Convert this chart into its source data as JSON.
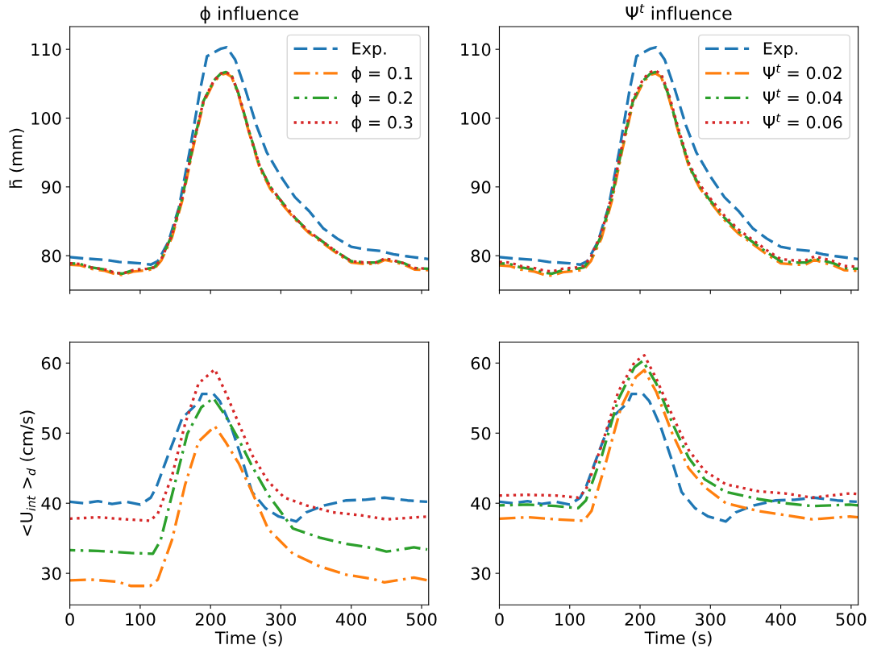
{
  "chart_data": [
    {
      "type": "line",
      "title": "ϕ influence",
      "ylabel": "h̄ (mm)",
      "xlim": [
        0,
        510
      ],
      "xticks": [
        0,
        100,
        200,
        300,
        400,
        500
      ],
      "ylim": [
        75,
        113.3
      ],
      "yticks": [
        80,
        90,
        100,
        110
      ],
      "tick_labels": "y",
      "legend": "top right",
      "grid": false,
      "series": [
        {
          "name": "Exp.",
          "color": "#1f77b4",
          "line_style": "dashed",
          "x": [
            0,
            20,
            50,
            70,
            100,
            115,
            125,
            140,
            155,
            170,
            185,
            195,
            206,
            215,
            223,
            235,
            250,
            265,
            280,
            300,
            320,
            340,
            360,
            380,
            400,
            420,
            440,
            460,
            480,
            510
          ],
          "values": [
            79.8,
            79.6,
            79.4,
            79.1,
            78.9,
            78.7,
            79.2,
            82,
            87,
            95,
            104,
            109,
            109.6,
            110.1,
            110.3,
            108.5,
            104,
            99,
            95,
            91.5,
            88.5,
            86.5,
            84,
            82.5,
            81.3,
            80.9,
            80.7,
            80.2,
            79.9,
            79.5
          ]
        },
        {
          "name": "ϕ = 0.1",
          "color": "#ff7f0e",
          "line_style": "dashdot",
          "x": [
            0,
            15,
            30,
            50,
            65,
            75,
            90,
            110,
            120,
            130,
            145,
            160,
            175,
            190,
            205,
            215,
            222,
            230,
            240,
            255,
            270,
            285,
            300,
            320,
            340,
            360,
            380,
            400,
            420,
            435,
            448,
            460,
            475,
            490,
            510
          ],
          "values": [
            78.7,
            78.6,
            78.1,
            77.8,
            77.3,
            77.2,
            77.7,
            77.9,
            78.1,
            79.3,
            82.6,
            88.1,
            95.6,
            102.2,
            105.3,
            106.3,
            106.5,
            106.0,
            103.3,
            97.8,
            92.7,
            89.7,
            87.7,
            85.3,
            83.3,
            81.8,
            80.3,
            79.0,
            78.8,
            78.8,
            79.4,
            79.1,
            78.7,
            78.0,
            77.9
          ]
        },
        {
          "name": "ϕ = 0.2",
          "color": "#2ca02c",
          "line_style": "dashdot",
          "x": [
            0,
            15,
            30,
            50,
            65,
            75,
            90,
            110,
            120,
            130,
            145,
            160,
            175,
            190,
            205,
            215,
            222,
            230,
            240,
            255,
            270,
            285,
            300,
            320,
            340,
            360,
            380,
            400,
            420,
            435,
            448,
            460,
            475,
            490,
            510
          ],
          "values": [
            78.9,
            78.8,
            78.3,
            78.0,
            77.5,
            77.4,
            77.9,
            78.1,
            78.3,
            79.5,
            83,
            88.5,
            96,
            102.5,
            105.5,
            106.5,
            106.7,
            106.2,
            103.5,
            98,
            93,
            90,
            88,
            85.5,
            83.5,
            82,
            80.5,
            79.2,
            79.0,
            79.0,
            79.6,
            79.3,
            78.9,
            78.2,
            78.1
          ]
        },
        {
          "name": "ϕ = 0.3",
          "color": "#d62728",
          "line_style": "dotted",
          "x": [
            0,
            15,
            30,
            50,
            65,
            75,
            90,
            110,
            120,
            130,
            145,
            160,
            175,
            190,
            205,
            215,
            222,
            230,
            240,
            255,
            270,
            285,
            300,
            320,
            340,
            360,
            380,
            400,
            420,
            435,
            448,
            460,
            475,
            490,
            510
          ],
          "values": [
            78.9,
            78.8,
            78.3,
            78.0,
            77.5,
            77.4,
            77.9,
            78.1,
            78.3,
            79.5,
            83,
            88.5,
            96,
            102.5,
            105.5,
            106.5,
            106.7,
            106.2,
            103.5,
            98,
            93,
            90,
            88,
            85.5,
            83.5,
            82,
            80.5,
            79.2,
            79.0,
            79.0,
            79.6,
            79.3,
            78.9,
            78.2,
            78.1
          ]
        }
      ]
    },
    {
      "type": "line",
      "title": "Ψ$^{t}$ influence",
      "xlim": [
        0,
        510
      ],
      "xticks": [
        0,
        100,
        200,
        300,
        400,
        500
      ],
      "ylim": [
        75,
        113.3
      ],
      "yticks": [
        80,
        90,
        100,
        110
      ],
      "tick_labels": "y",
      "legend": "top right",
      "grid": false,
      "series": [
        {
          "name": "Exp.",
          "color": "#1f77b4",
          "line_style": "dashed",
          "x": [
            0,
            20,
            50,
            70,
            100,
            115,
            125,
            140,
            155,
            170,
            185,
            195,
            206,
            215,
            223,
            235,
            250,
            265,
            280,
            300,
            320,
            340,
            360,
            380,
            400,
            420,
            440,
            460,
            480,
            510
          ],
          "values": [
            79.8,
            79.6,
            79.4,
            79.1,
            78.9,
            78.7,
            79.2,
            82,
            87,
            95,
            104,
            109,
            109.6,
            110.1,
            110.3,
            108.5,
            104,
            99,
            95,
            91.5,
            88.5,
            86.5,
            84,
            82.5,
            81.3,
            80.9,
            80.7,
            80.2,
            79.9,
            79.5
          ]
        },
        {
          "name": "Ψ$^{t}$ = 0.02",
          "color": "#ff7f0e",
          "line_style": "dashdot",
          "x": [
            0,
            15,
            30,
            50,
            65,
            75,
            90,
            110,
            120,
            130,
            145,
            160,
            175,
            190,
            205,
            215,
            222,
            230,
            240,
            255,
            270,
            285,
            300,
            320,
            340,
            360,
            380,
            400,
            420,
            435,
            448,
            460,
            475,
            490,
            510
          ],
          "values": [
            78.6,
            78.5,
            78.0,
            77.7,
            77.2,
            77.1,
            77.6,
            77.8,
            78.0,
            79.2,
            82.5,
            88,
            95.5,
            102.2,
            105.3,
            106.3,
            106.5,
            106.0,
            103.3,
            97.8,
            92.8,
            89.8,
            87.8,
            85.2,
            83.2,
            81.7,
            80.2,
            78.9,
            78.7,
            78.7,
            79.4,
            79.0,
            78.6,
            77.9,
            77.8
          ]
        },
        {
          "name": "Ψ$^{t}$ = 0.04",
          "color": "#2ca02c",
          "line_style": "dashdot",
          "x": [
            0,
            15,
            30,
            50,
            65,
            75,
            90,
            110,
            120,
            130,
            145,
            160,
            175,
            190,
            205,
            215,
            222,
            230,
            240,
            255,
            270,
            285,
            300,
            320,
            340,
            360,
            380,
            400,
            420,
            435,
            448,
            460,
            475,
            490,
            510
          ],
          "values": [
            78.9,
            78.8,
            78.3,
            78.0,
            77.5,
            77.4,
            77.9,
            78.1,
            78.3,
            79.5,
            83,
            88.5,
            96,
            102.5,
            105.5,
            106.5,
            106.7,
            106.2,
            103.5,
            98,
            93,
            90,
            88,
            85.5,
            83.5,
            82,
            80.5,
            79.2,
            79.0,
            79.0,
            79.6,
            79.3,
            78.9,
            78.2,
            78.1
          ]
        },
        {
          "name": "Ψ$^{t}$ = 0.06",
          "color": "#d62728",
          "line_style": "dotted",
          "x": [
            0,
            15,
            30,
            50,
            65,
            75,
            90,
            110,
            120,
            130,
            145,
            160,
            175,
            190,
            205,
            215,
            222,
            230,
            240,
            255,
            270,
            285,
            300,
            320,
            340,
            360,
            380,
            400,
            420,
            435,
            448,
            460,
            475,
            490,
            510
          ],
          "values": [
            79.1,
            79.0,
            78.5,
            78.2,
            77.8,
            77.7,
            78.1,
            78.3,
            78.5,
            79.8,
            83.3,
            88.8,
            96.3,
            102.8,
            105.8,
            106.7,
            106.9,
            106.4,
            103.8,
            98.3,
            93.3,
            90.3,
            88.3,
            85.8,
            83.8,
            82.3,
            80.8,
            79.5,
            79.3,
            79.3,
            79.9,
            79.6,
            79.2,
            78.5,
            78.4
          ]
        }
      ]
    },
    {
      "type": "line",
      "ylabel": "<U$_{int}$ >$_{d}$ (cm/s)",
      "xlabel": "Time (s)",
      "xlim": [
        0,
        510
      ],
      "xticks": [
        0,
        100,
        200,
        300,
        400,
        500
      ],
      "ylim": [
        25.5,
        63
      ],
      "yticks": [
        30,
        40,
        50,
        60
      ],
      "grid": false,
      "series": [
        {
          "color": "#1f77b4",
          "line_style": "dashed",
          "x": [
            0,
            20,
            40,
            60,
            80,
            100,
            115,
            123,
            141,
            160,
            183,
            188,
            204,
            213,
            229,
            244,
            259,
            278,
            297,
            322,
            336,
            362,
            393,
            420,
            447,
            480,
            508
          ],
          "values": [
            40.2,
            40.0,
            40.3,
            39.9,
            40.2,
            39.8,
            40.8,
            42.3,
            47.2,
            52.2,
            54.4,
            55.6,
            55.6,
            54.6,
            51,
            46.5,
            41.6,
            39.3,
            38.1,
            37.4,
            38.7,
            39.7,
            40.4,
            40.5,
            40.8,
            40.4,
            40.2
          ]
        },
        {
          "color": "#ff7f0e",
          "line_style": "dashdot",
          "x": [
            0,
            30,
            68,
            87,
            114,
            125,
            145,
            164,
            183,
            206,
            221,
            240,
            259,
            282,
            317,
            355,
            393,
            431,
            447,
            489,
            508
          ],
          "values": [
            29.0,
            29.1,
            28.8,
            28.2,
            28.2,
            29.1,
            34.7,
            42.7,
            48.8,
            51.0,
            48.8,
            45.7,
            41.6,
            36.3,
            32.8,
            31.0,
            29.8,
            29.2,
            28.7,
            29.4,
            29.0
          ]
        },
        {
          "color": "#2ca02c",
          "line_style": "dashdot",
          "x": [
            0,
            40,
            87,
            118,
            129,
            148,
            167,
            187,
            204,
            221,
            240,
            259,
            282,
            317,
            355,
            393,
            431,
            450,
            489,
            508
          ],
          "values": [
            33.3,
            33.2,
            32.9,
            32.8,
            34.7,
            42.3,
            49.9,
            53.7,
            55.0,
            52.5,
            49.1,
            45.3,
            41.2,
            36.4,
            35.1,
            34.2,
            33.6,
            33.1,
            33.7,
            33.4
          ]
        },
        {
          "color": "#d62728",
          "line_style": "dotted",
          "x": [
            0,
            40,
            80,
            114,
            125,
            145,
            164,
            183,
            206,
            221,
            240,
            259,
            282,
            305,
            336,
            374,
            412,
            450,
            508
          ],
          "values": [
            37.8,
            38.0,
            37.7,
            37.5,
            38.5,
            43.8,
            51.4,
            57.1,
            59.1,
            55.9,
            51.4,
            46.9,
            43.1,
            40.8,
            39.7,
            38.7,
            38.3,
            37.7,
            38.1
          ]
        }
      ]
    },
    {
      "type": "line",
      "xlabel": "Time (s)",
      "xlim": [
        0,
        510
      ],
      "xticks": [
        0,
        100,
        200,
        300,
        400,
        500
      ],
      "ylim": [
        25.5,
        63
      ],
      "yticks": [
        30,
        40,
        50,
        60
      ],
      "grid": false,
      "series": [
        {
          "color": "#1f77b4",
          "line_style": "dashed",
          "x": [
            0,
            20,
            40,
            60,
            80,
            100,
            115,
            123,
            141,
            160,
            183,
            188,
            204,
            213,
            229,
            244,
            259,
            278,
            297,
            322,
            336,
            362,
            393,
            420,
            447,
            480,
            508
          ],
          "values": [
            40.2,
            40.0,
            40.3,
            39.9,
            40.2,
            39.8,
            40.8,
            42.3,
            47.2,
            52.2,
            54.4,
            55.6,
            55.6,
            54.6,
            51,
            46.5,
            41.6,
            39.3,
            38.1,
            37.4,
            38.7,
            39.7,
            40.4,
            40.5,
            40.8,
            40.4,
            40.2
          ]
        },
        {
          "color": "#ff7f0e",
          "line_style": "dashdot",
          "x": [
            0,
            40,
            80,
            120,
            131,
            150,
            173,
            194,
            206,
            223,
            246,
            269,
            292,
            322,
            368,
            406,
            445,
            498,
            510
          ],
          "values": [
            37.8,
            38.0,
            37.7,
            37.5,
            38.9,
            45.3,
            53.7,
            58.0,
            59.0,
            55.9,
            49.9,
            45.0,
            42.3,
            40.0,
            38.9,
            38.3,
            37.7,
            38.1,
            38.0
          ]
        },
        {
          "color": "#2ca02c",
          "line_style": "dashdot",
          "x": [
            0,
            40,
            80,
            112,
            123,
            146,
            169,
            192,
            204,
            223,
            246,
            269,
            292,
            322,
            368,
            406,
            445,
            498,
            510
          ],
          "values": [
            39.7,
            39.8,
            39.6,
            39.3,
            40.4,
            46.9,
            54.8,
            59.4,
            60.3,
            57.1,
            51.4,
            46.5,
            43.4,
            41.6,
            40.6,
            40.0,
            39.6,
            39.8,
            39.7
          ]
        },
        {
          "color": "#d62728",
          "line_style": "dotted",
          "x": [
            0,
            40,
            80,
            112,
            123,
            146,
            169,
            192,
            206,
            223,
            246,
            269,
            292,
            322,
            368,
            406,
            445,
            498,
            510
          ],
          "values": [
            41.1,
            41.2,
            41.1,
            40.8,
            41.9,
            48.4,
            55.9,
            60.1,
            61.1,
            57.8,
            52.5,
            47.6,
            44.6,
            42.7,
            41.7,
            41.4,
            40.8,
            41.4,
            41.3
          ]
        }
      ]
    }
  ]
}
